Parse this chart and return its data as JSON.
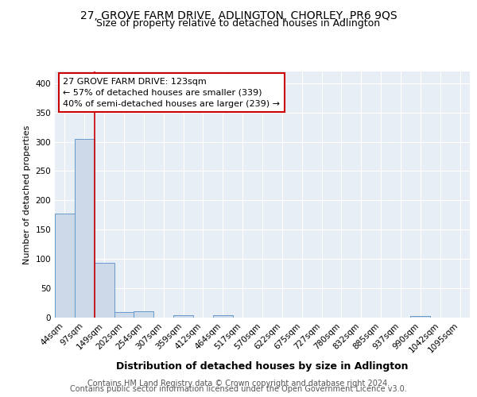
{
  "title": "27, GROVE FARM DRIVE, ADLINGTON, CHORLEY, PR6 9QS",
  "subtitle": "Size of property relative to detached houses in Adlington",
  "xlabel": "Distribution of detached houses by size in Adlington",
  "ylabel": "Number of detached properties",
  "bar_labels": [
    "44sqm",
    "97sqm",
    "149sqm",
    "202sqm",
    "254sqm",
    "307sqm",
    "359sqm",
    "412sqm",
    "464sqm",
    "517sqm",
    "570sqm",
    "622sqm",
    "675sqm",
    "727sqm",
    "780sqm",
    "832sqm",
    "885sqm",
    "937sqm",
    "990sqm",
    "1042sqm",
    "1095sqm"
  ],
  "bar_values": [
    177,
    305,
    93,
    9,
    11,
    0,
    4,
    0,
    4,
    0,
    0,
    0,
    0,
    0,
    0,
    0,
    0,
    0,
    3,
    0,
    0
  ],
  "bar_color": "#ccd9e8",
  "bar_edge_color": "#6699cc",
  "vline_color": "#cc0000",
  "vline_position": 1.5,
  "annotation_text": "27 GROVE FARM DRIVE: 123sqm\n← 57% of detached houses are smaller (339)\n40% of semi-detached houses are larger (239) →",
  "annotation_box_facecolor": "#ffffff",
  "annotation_box_edgecolor": "#cc0000",
  "footer1": "Contains HM Land Registry data © Crown copyright and database right 2024.",
  "footer2": "Contains public sector information licensed under the Open Government Licence v3.0.",
  "bg_color": "#e8eef5",
  "grid_color": "#ffffff",
  "ylim": [
    0,
    420
  ],
  "yticks": [
    0,
    50,
    100,
    150,
    200,
    250,
    300,
    350,
    400
  ],
  "title_fontsize": 10,
  "subtitle_fontsize": 9,
  "xlabel_fontsize": 9,
  "ylabel_fontsize": 8,
  "tick_fontsize": 7.5,
  "annot_fontsize": 8,
  "footer_fontsize": 7
}
